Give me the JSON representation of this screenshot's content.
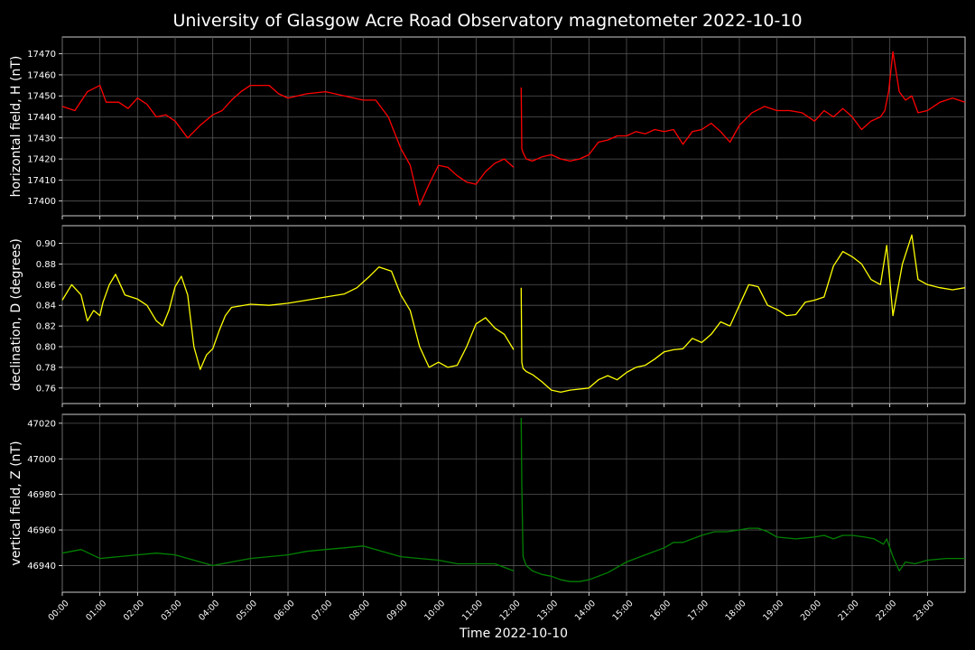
{
  "chart_data": {
    "type": "line",
    "title": "University of Glasgow Acre Road Observatory magnetometer 2022-10-10",
    "xlabel": "Time 2022-10-10",
    "x_tick_labels": [
      "00:00",
      "01:00",
      "02:00",
      "03:00",
      "04:00",
      "05:00",
      "06:00",
      "07:00",
      "08:00",
      "09:00",
      "10:00",
      "11:00",
      "12:00",
      "13:00",
      "14:00",
      "15:00",
      "16:00",
      "17:00",
      "18:00",
      "19:00",
      "20:00",
      "21:00",
      "22:00",
      "23:00"
    ],
    "xlim": [
      "00:00",
      "24:00"
    ],
    "grid": true,
    "panels": [
      {
        "ylabel": "horizontal field, H (nT)",
        "color": "#ff0000",
        "ylim": [
          17393,
          17478
        ],
        "yticks": [
          17400,
          17410,
          17420,
          17430,
          17440,
          17450,
          17460,
          17470
        ],
        "segments": [
          {
            "x": [
              "00:00",
              "00:20",
              "00:40",
              "01:00",
              "01:10",
              "01:30",
              "01:45",
              "02:00",
              "02:15",
              "02:30",
              "02:45",
              "03:00",
              "03:20",
              "03:40",
              "04:00",
              "04:15",
              "04:30",
              "04:45",
              "05:00",
              "05:15",
              "05:30",
              "05:45",
              "06:00",
              "06:30",
              "07:00",
              "07:30",
              "08:00",
              "08:20",
              "08:40",
              "09:00",
              "09:15",
              "09:30",
              "09:45",
              "10:00",
              "10:15",
              "10:30",
              "10:45",
              "11:00",
              "11:15",
              "11:30",
              "11:45",
              "12:00"
            ],
            "y": [
              17445,
              17443,
              17452,
              17455,
              17447,
              17447,
              17444,
              17449,
              17446,
              17440,
              17441,
              17438,
              17430,
              17436,
              17441,
              17443,
              17448,
              17452,
              17455,
              17455,
              17455,
              17451,
              17449,
              17451,
              17452,
              17450,
              17448,
              17448,
              17440,
              17425,
              17417,
              17398,
              17408,
              17417,
              17416,
              17412,
              17409,
              17408,
              17414,
              17418,
              17420,
              17416
            ]
          },
          {
            "x": [
              "12:12",
              "12:13",
              "12:15",
              "12:20",
              "12:30",
              "12:45",
              "13:00",
              "13:15",
              "13:30",
              "13:45",
              "14:00",
              "14:15",
              "14:30",
              "14:45",
              "15:00",
              "15:15",
              "15:30",
              "15:45",
              "16:00",
              "16:15",
              "16:30",
              "16:45",
              "17:00",
              "17:15",
              "17:30",
              "17:45",
              "18:00",
              "18:20",
              "18:40",
              "19:00",
              "19:20",
              "19:40",
              "20:00",
              "20:15",
              "20:30",
              "20:45",
              "21:00",
              "21:15",
              "21:30",
              "21:45",
              "21:52",
              "21:58",
              "22:05",
              "22:15",
              "22:25",
              "22:35",
              "22:45",
              "23:00",
              "23:20",
              "23:40",
              "24:00"
            ],
            "y": [
              17454,
              17425,
              17423,
              17420,
              17419,
              17421,
              17422,
              17420,
              17419,
              17420,
              17422,
              17428,
              17429,
              17431,
              17431,
              17433,
              17432,
              17434,
              17433,
              17434,
              17427,
              17433,
              17434,
              17437,
              17433,
              17428,
              17436,
              17442,
              17445,
              17443,
              17443,
              17442,
              17438,
              17443,
              17440,
              17444,
              17440,
              17434,
              17438,
              17440,
              17443,
              17452,
              17471,
              17452,
              17448,
              17450,
              17442,
              17443,
              17447,
              17449,
              17447
            ]
          }
        ]
      },
      {
        "ylabel": "declination, D (degrees)",
        "color": "#ffff00",
        "ylim": [
          0.745,
          0.917
        ],
        "yticks": [
          0.76,
          0.78,
          0.8,
          0.82,
          0.84,
          0.86,
          0.88,
          0.9
        ],
        "segments": [
          {
            "x": [
              "00:00",
              "00:15",
              "00:30",
              "00:40",
              "00:50",
              "01:00",
              "01:05",
              "01:15",
              "01:25",
              "01:40",
              "02:00",
              "02:15",
              "02:30",
              "02:40",
              "02:50",
              "03:00",
              "03:10",
              "03:20",
              "03:30",
              "03:40",
              "03:50",
              "04:00",
              "04:10",
              "04:20",
              "04:30",
              "05:00",
              "05:30",
              "06:00",
              "06:30",
              "07:00",
              "07:30",
              "07:50",
              "08:10",
              "08:25",
              "08:45",
              "09:00",
              "09:15",
              "09:30",
              "09:45",
              "10:00",
              "10:15",
              "10:30",
              "10:45",
              "11:00",
              "11:15",
              "11:30",
              "11:45",
              "12:00"
            ],
            "y": [
              0.845,
              0.86,
              0.85,
              0.825,
              0.835,
              0.83,
              0.843,
              0.86,
              0.87,
              0.85,
              0.846,
              0.84,
              0.825,
              0.82,
              0.835,
              0.858,
              0.868,
              0.85,
              0.8,
              0.778,
              0.792,
              0.798,
              0.815,
              0.83,
              0.838,
              0.841,
              0.84,
              0.842,
              0.845,
              0.848,
              0.851,
              0.857,
              0.868,
              0.877,
              0.873,
              0.85,
              0.835,
              0.8,
              0.78,
              0.785,
              0.78,
              0.782,
              0.8,
              0.822,
              0.828,
              0.818,
              0.812,
              0.797
            ]
          },
          {
            "x": [
              "12:12",
              "12:13",
              "12:15",
              "12:20",
              "12:30",
              "12:45",
              "13:00",
              "13:15",
              "13:30",
              "13:45",
              "14:00",
              "14:15",
              "14:30",
              "14:45",
              "15:00",
              "15:15",
              "15:30",
              "15:45",
              "16:00",
              "16:15",
              "16:30",
              "16:45",
              "17:00",
              "17:15",
              "17:30",
              "17:45",
              "18:00",
              "18:15",
              "18:30",
              "18:45",
              "19:00",
              "19:15",
              "19:30",
              "19:45",
              "20:00",
              "20:15",
              "20:30",
              "20:45",
              "21:00",
              "21:15",
              "21:30",
              "21:45",
              "21:55",
              "22:05",
              "22:20",
              "22:35",
              "22:45",
              "23:00",
              "23:20",
              "23:40",
              "24:00"
            ],
            "y": [
              0.857,
              0.785,
              0.779,
              0.776,
              0.773,
              0.766,
              0.758,
              0.756,
              0.758,
              0.759,
              0.76,
              0.768,
              0.772,
              0.768,
              0.775,
              0.78,
              0.782,
              0.788,
              0.795,
              0.797,
              0.798,
              0.808,
              0.804,
              0.812,
              0.824,
              0.82,
              0.84,
              0.86,
              0.858,
              0.84,
              0.836,
              0.83,
              0.831,
              0.843,
              0.845,
              0.848,
              0.878,
              0.892,
              0.887,
              0.88,
              0.865,
              0.86,
              0.898,
              0.83,
              0.88,
              0.908,
              0.865,
              0.86,
              0.857,
              0.855,
              0.857
            ]
          }
        ]
      },
      {
        "ylabel": "vertical field, Z (nT)",
        "color": "#008000",
        "ylim": [
          46925,
          47025
        ],
        "yticks": [
          46940,
          46960,
          46980,
          47000,
          47020
        ],
        "segments": [
          {
            "x": [
              "00:00",
              "00:30",
              "01:00",
              "01:30",
              "02:00",
              "02:30",
              "03:00",
              "03:30",
              "04:00",
              "04:30",
              "05:00",
              "05:30",
              "06:00",
              "06:30",
              "07:00",
              "07:30",
              "08:00",
              "08:30",
              "09:00",
              "09:30",
              "10:00",
              "10:30",
              "11:00",
              "11:30",
              "12:00"
            ],
            "y": [
              46947,
              46949,
              46944,
              46945,
              46946,
              46947,
              46946,
              46943,
              46940,
              46942,
              46944,
              46945,
              46946,
              46948,
              46949,
              46950,
              46951,
              46948,
              46945,
              46944,
              46943,
              46941,
              46941,
              46941,
              46937
            ]
          },
          {
            "x": [
              "12:12",
              "12:13",
              "12:15",
              "12:20",
              "12:30",
              "12:45",
              "13:00",
              "13:15",
              "13:30",
              "13:45",
              "14:00",
              "14:15",
              "14:30",
              "14:45",
              "15:00",
              "15:30",
              "16:00",
              "16:15",
              "16:30",
              "17:00",
              "17:20",
              "17:40",
              "18:00",
              "18:15",
              "18:30",
              "18:45",
              "19:00",
              "19:30",
              "20:00",
              "20:15",
              "20:30",
              "20:45",
              "21:00",
              "21:20",
              "21:35",
              "21:50",
              "21:55",
              "22:05",
              "22:15",
              "22:25",
              "22:40",
              "23:00",
              "23:30",
              "24:00"
            ],
            "y": [
              47023,
              46985,
              46945,
              46940,
              46937,
              46935,
              46934,
              46932,
              46931,
              46931,
              46932,
              46934,
              46936,
              46939,
              46942,
              46946,
              46950,
              46953,
              46953,
              46957,
              46959,
              46959,
              46960,
              46961,
              46961,
              46959,
              46956,
              46955,
              46956,
              46957,
              46955,
              46957,
              46957,
              46956,
              46955,
              46952,
              46955,
              46945,
              46937,
              46942,
              46941,
              46943,
              46944,
              46944
            ]
          }
        ]
      }
    ]
  }
}
